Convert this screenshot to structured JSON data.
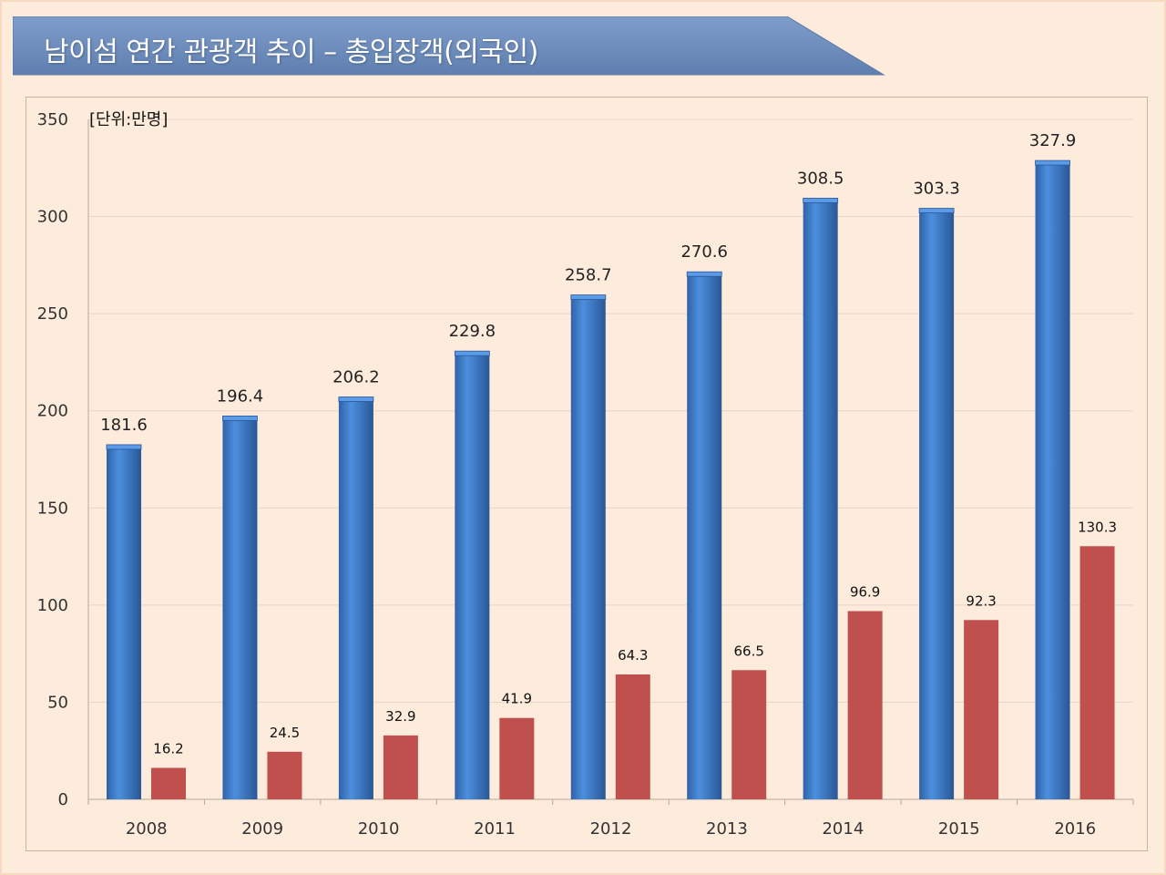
{
  "title": "남이섬  연간 관광객 추이 – 총입장객(외국인)",
  "colors": {
    "background": "#fdebdc",
    "banner": "#6f8fbe",
    "total_bar": "#3d7ac8",
    "foreign_bar": "#c0504d",
    "gridline": "#e6d6c8"
  },
  "chart_data": {
    "type": "bar",
    "title": "",
    "unit_label": "[단위:만명]",
    "xlabel": "",
    "ylabel": "",
    "ylim": [
      0,
      350
    ],
    "yticks": [
      0,
      50,
      100,
      150,
      200,
      250,
      300,
      350
    ],
    "grid": true,
    "legend": "none",
    "categories": [
      "2008",
      "2009",
      "2010",
      "2011",
      "2012",
      "2013",
      "2014",
      "2015",
      "2016"
    ],
    "series": [
      {
        "values": [
          181.6,
          196.4,
          206.2,
          229.8,
          258.7,
          270.6,
          308.5,
          303.3,
          327.9
        ],
        "labels": [
          "181.6",
          "196.4",
          "206.2",
          "229.8",
          "258.7",
          "270.6",
          "308.5",
          "303.3",
          "327.9"
        ]
      },
      {
        "values": [
          16.2,
          24.5,
          32.9,
          41.9,
          64.3,
          66.5,
          96.9,
          92.3,
          130.3
        ],
        "labels": [
          "16.2",
          "24.5",
          "32.9",
          "41.9",
          "64.3",
          "66.5",
          "96.9",
          "92.3",
          "130.3"
        ]
      }
    ]
  }
}
